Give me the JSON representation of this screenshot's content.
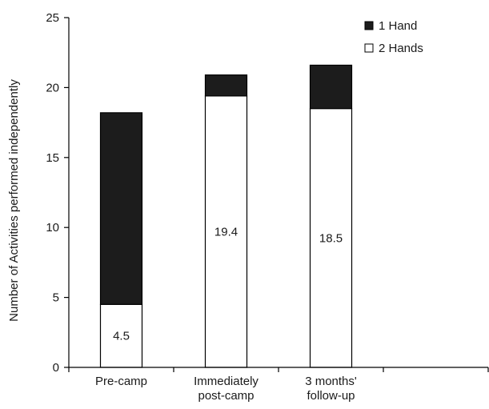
{
  "chart_data": {
    "type": "bar",
    "stacked": true,
    "title": "",
    "xlabel": "",
    "ylabel": "Number of Activities performed independently",
    "ylim": [
      0,
      25
    ],
    "yticks": [
      "0",
      "5",
      "10",
      "15",
      "20",
      "25"
    ],
    "ytick_values": [
      0,
      5,
      10,
      15,
      20,
      25
    ],
    "categories": [
      [
        "Pre-camp"
      ],
      [
        "Immediately",
        "post-camp"
      ],
      [
        "3 months'",
        "follow-up"
      ]
    ],
    "empty_slots_after": 1,
    "series": [
      {
        "name": "2 Hands",
        "values": [
          4.5,
          19.4,
          18.5
        ],
        "color": "#ffffff",
        "labels": [
          "4.5",
          "19.4",
          "18.5"
        ]
      },
      {
        "name": "1 Hand",
        "values": [
          13.7,
          1.5,
          3.1
        ],
        "color": "#1c1c1c"
      }
    ],
    "legend": {
      "position": "top-right",
      "entries": [
        {
          "name": "1 Hand",
          "color": "#1c1c1c"
        },
        {
          "name": "2 Hands",
          "color": "#ffffff"
        }
      ]
    },
    "grid": false
  }
}
